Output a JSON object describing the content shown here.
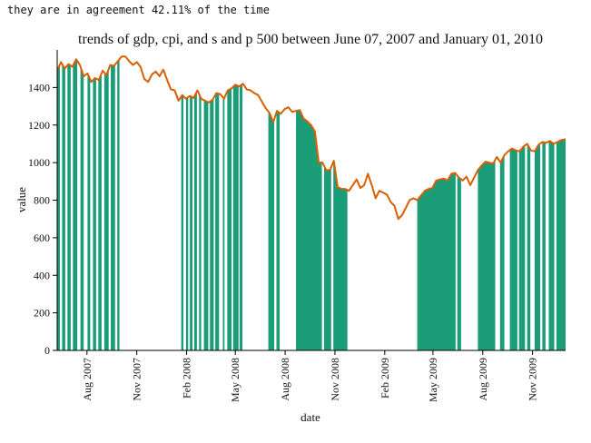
{
  "caption": "they are in agreement 42.11% of the time",
  "chart_data": {
    "type": "area",
    "title": "trends of  gdp, cpi, and s and p 500 between June 07, 2007 and January 01, 2010",
    "xlabel": "date",
    "ylabel": "value",
    "ylim": [
      0,
      1600
    ],
    "yticks": [
      0,
      200,
      400,
      600,
      800,
      1000,
      1200,
      1400
    ],
    "xrange": [
      "2007-06-07",
      "2010-01-01"
    ],
    "xticks": [
      {
        "date": "2007-08-01",
        "label": "Aug 2007"
      },
      {
        "date": "2007-11-01",
        "label": "Nov 2007"
      },
      {
        "date": "2008-02-01",
        "label": "Feb 2008"
      },
      {
        "date": "2008-05-01",
        "label": "May 2008"
      },
      {
        "date": "2008-08-01",
        "label": "Aug 2008"
      },
      {
        "date": "2008-11-01",
        "label": "Nov 2008"
      },
      {
        "date": "2009-02-01",
        "label": "Feb 2009"
      },
      {
        "date": "2009-05-01",
        "label": "May 2009"
      },
      {
        "date": "2009-08-01",
        "label": "Aug 2009"
      },
      {
        "date": "2009-11-01",
        "label": "Nov 2009"
      }
    ],
    "grid": false,
    "colors": {
      "line": "#d95f02",
      "fill": "#1b9e77"
    },
    "series": [
      {
        "name": "s and p 500",
        "points": [
          [
            "2007-06-07",
            1490
          ],
          [
            "2007-06-14",
            1535
          ],
          [
            "2007-06-21",
            1500
          ],
          [
            "2007-06-28",
            1525
          ],
          [
            "2007-07-05",
            1510
          ],
          [
            "2007-07-12",
            1550
          ],
          [
            "2007-07-19",
            1520
          ],
          [
            "2007-07-26",
            1460
          ],
          [
            "2007-08-02",
            1475
          ],
          [
            "2007-08-09",
            1430
          ],
          [
            "2007-08-16",
            1450
          ],
          [
            "2007-08-23",
            1440
          ],
          [
            "2007-08-30",
            1490
          ],
          [
            "2007-09-06",
            1465
          ],
          [
            "2007-09-13",
            1520
          ],
          [
            "2007-09-20",
            1515
          ],
          [
            "2007-09-27",
            1540
          ],
          [
            "2007-10-04",
            1565
          ],
          [
            "2007-10-11",
            1565
          ],
          [
            "2007-10-18",
            1540
          ],
          [
            "2007-10-25",
            1520
          ],
          [
            "2007-11-01",
            1535
          ],
          [
            "2007-11-08",
            1510
          ],
          [
            "2007-11-15",
            1445
          ],
          [
            "2007-11-22",
            1430
          ],
          [
            "2007-11-29",
            1470
          ],
          [
            "2007-12-06",
            1485
          ],
          [
            "2007-12-13",
            1460
          ],
          [
            "2007-12-20",
            1495
          ],
          [
            "2007-12-27",
            1440
          ],
          [
            "2008-01-03",
            1390
          ],
          [
            "2008-01-10",
            1385
          ],
          [
            "2008-01-17",
            1330
          ],
          [
            "2008-01-24",
            1360
          ],
          [
            "2008-01-31",
            1340
          ],
          [
            "2008-02-07",
            1355
          ],
          [
            "2008-02-14",
            1345
          ],
          [
            "2008-02-21",
            1385
          ],
          [
            "2008-02-28",
            1340
          ],
          [
            "2008-03-06",
            1330
          ],
          [
            "2008-03-13",
            1320
          ],
          [
            "2008-03-20",
            1335
          ],
          [
            "2008-03-27",
            1370
          ],
          [
            "2008-04-03",
            1365
          ],
          [
            "2008-04-10",
            1340
          ],
          [
            "2008-04-17",
            1385
          ],
          [
            "2008-04-24",
            1395
          ],
          [
            "2008-05-01",
            1415
          ],
          [
            "2008-05-08",
            1405
          ],
          [
            "2008-05-15",
            1420
          ],
          [
            "2008-05-22",
            1390
          ],
          [
            "2008-05-29",
            1385
          ],
          [
            "2008-06-05",
            1370
          ],
          [
            "2008-06-12",
            1360
          ],
          [
            "2008-06-19",
            1325
          ],
          [
            "2008-06-26",
            1290
          ],
          [
            "2008-07-03",
            1265
          ],
          [
            "2008-07-10",
            1215
          ],
          [
            "2008-07-17",
            1275
          ],
          [
            "2008-07-24",
            1260
          ],
          [
            "2008-07-31",
            1285
          ],
          [
            "2008-08-07",
            1295
          ],
          [
            "2008-08-14",
            1270
          ],
          [
            "2008-08-21",
            1275
          ],
          [
            "2008-08-28",
            1280
          ],
          [
            "2008-09-04",
            1235
          ],
          [
            "2008-09-11",
            1220
          ],
          [
            "2008-09-18",
            1200
          ],
          [
            "2008-09-25",
            1165
          ],
          [
            "2008-10-02",
            1000
          ],
          [
            "2008-10-09",
            1000
          ],
          [
            "2008-10-16",
            960
          ],
          [
            "2008-10-23",
            960
          ],
          [
            "2008-10-30",
            1010
          ],
          [
            "2008-11-06",
            870
          ],
          [
            "2008-11-13",
            860
          ],
          [
            "2008-11-20",
            860
          ],
          [
            "2008-11-27",
            850
          ],
          [
            "2008-12-04",
            880
          ],
          [
            "2008-12-11",
            910
          ],
          [
            "2008-12-18",
            865
          ],
          [
            "2008-12-25",
            880
          ],
          [
            "2009-01-01",
            940
          ],
          [
            "2009-01-08",
            880
          ],
          [
            "2009-01-15",
            810
          ],
          [
            "2009-01-22",
            850
          ],
          [
            "2009-01-29",
            840
          ],
          [
            "2009-02-05",
            830
          ],
          [
            "2009-02-12",
            790
          ],
          [
            "2009-02-19",
            770
          ],
          [
            "2009-02-26",
            700
          ],
          [
            "2009-03-05",
            720
          ],
          [
            "2009-03-12",
            760
          ],
          [
            "2009-03-19",
            800
          ],
          [
            "2009-03-26",
            810
          ],
          [
            "2009-04-02",
            800
          ],
          [
            "2009-04-09",
            825
          ],
          [
            "2009-04-16",
            850
          ],
          [
            "2009-04-23",
            860
          ],
          [
            "2009-04-30",
            865
          ],
          [
            "2009-05-07",
            905
          ],
          [
            "2009-05-14",
            910
          ],
          [
            "2009-05-21",
            915
          ],
          [
            "2009-05-28",
            905
          ],
          [
            "2009-06-04",
            940
          ],
          [
            "2009-06-11",
            945
          ],
          [
            "2009-06-18",
            920
          ],
          [
            "2009-06-25",
            905
          ],
          [
            "2009-07-02",
            925
          ],
          [
            "2009-07-09",
            880
          ],
          [
            "2009-07-16",
            920
          ],
          [
            "2009-07-23",
            960
          ],
          [
            "2009-07-30",
            985
          ],
          [
            "2009-08-06",
            1005
          ],
          [
            "2009-08-13",
            1000
          ],
          [
            "2009-08-20",
            995
          ],
          [
            "2009-08-27",
            1030
          ],
          [
            "2009-09-03",
            1000
          ],
          [
            "2009-09-10",
            1040
          ],
          [
            "2009-09-17",
            1060
          ],
          [
            "2009-09-24",
            1075
          ],
          [
            "2009-10-01",
            1065
          ],
          [
            "2009-10-08",
            1060
          ],
          [
            "2009-10-15",
            1085
          ],
          [
            "2009-10-22",
            1100
          ],
          [
            "2009-10-29",
            1065
          ],
          [
            "2009-11-05",
            1060
          ],
          [
            "2009-11-12",
            1095
          ],
          [
            "2009-11-19",
            1110
          ],
          [
            "2009-11-26",
            1105
          ],
          [
            "2009-12-03",
            1115
          ],
          [
            "2009-12-10",
            1100
          ],
          [
            "2009-12-17",
            1110
          ],
          [
            "2009-12-24",
            1120
          ],
          [
            "2010-01-01",
            1125
          ]
        ]
      }
    ],
    "agreement_spans": [
      [
        "2007-06-07",
        "2007-06-12"
      ],
      [
        "2007-06-16",
        "2007-06-22"
      ],
      [
        "2007-06-26",
        "2007-07-02"
      ],
      [
        "2007-07-06",
        "2007-07-14"
      ],
      [
        "2007-07-20",
        "2007-07-26"
      ],
      [
        "2007-08-02",
        "2007-08-07"
      ],
      [
        "2007-08-12",
        "2007-08-18"
      ],
      [
        "2007-08-22",
        "2007-08-28"
      ],
      [
        "2007-09-02",
        "2007-09-10"
      ],
      [
        "2007-09-14",
        "2007-09-22"
      ],
      [
        "2007-09-26",
        "2007-09-30"
      ],
      [
        "2008-01-22",
        "2008-01-26"
      ],
      [
        "2008-01-31",
        "2008-02-04"
      ],
      [
        "2008-02-07",
        "2008-02-12"
      ],
      [
        "2008-02-15",
        "2008-02-20"
      ],
      [
        "2008-02-24",
        "2008-02-28"
      ],
      [
        "2008-03-04",
        "2008-03-12"
      ],
      [
        "2008-03-15",
        "2008-03-22"
      ],
      [
        "2008-03-25",
        "2008-04-01"
      ],
      [
        "2008-04-08",
        "2008-04-11"
      ],
      [
        "2008-04-16",
        "2008-04-24"
      ],
      [
        "2008-04-27",
        "2008-05-07"
      ],
      [
        "2008-05-09",
        "2008-05-14"
      ],
      [
        "2008-07-01",
        "2008-07-12"
      ],
      [
        "2008-07-16",
        "2008-07-22"
      ],
      [
        "2008-08-21",
        "2008-10-08"
      ],
      [
        "2008-10-12",
        "2008-10-25"
      ],
      [
        "2008-10-29",
        "2008-11-24"
      ],
      [
        "2009-04-02",
        "2009-06-12"
      ],
      [
        "2009-06-15",
        "2009-06-22"
      ],
      [
        "2009-07-23",
        "2009-08-24"
      ],
      [
        "2009-09-02",
        "2009-09-10"
      ],
      [
        "2009-09-20",
        "2009-10-04"
      ],
      [
        "2009-10-07",
        "2009-10-18"
      ],
      [
        "2009-10-22",
        "2009-10-28"
      ],
      [
        "2009-11-05",
        "2009-11-15"
      ],
      [
        "2009-11-19",
        "2009-11-25"
      ],
      [
        "2009-12-01",
        "2009-12-11"
      ],
      [
        "2009-12-15",
        "2010-01-01"
      ]
    ]
  }
}
